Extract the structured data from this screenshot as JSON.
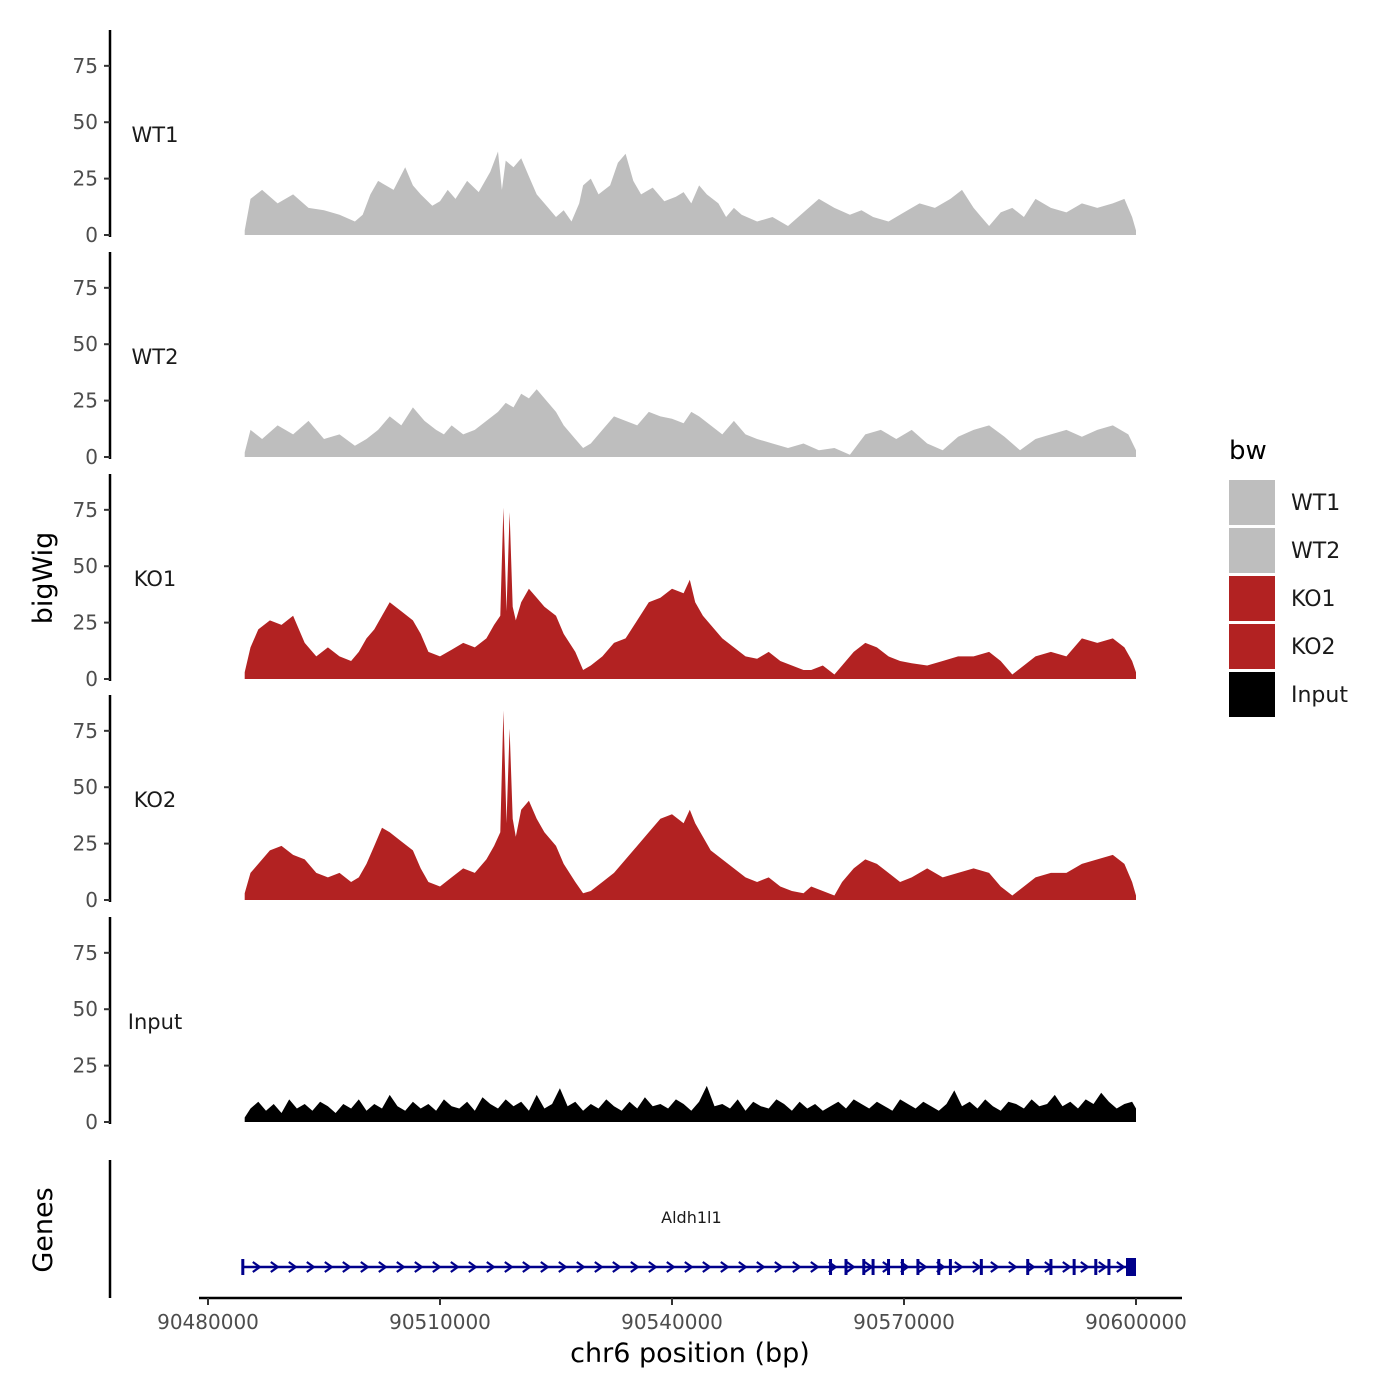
{
  "chart_data": {
    "type": "area",
    "chromosome": "chr6",
    "xlabel": "chr6 position (bp)",
    "ylabel": "bigWig",
    "genes_ylabel": "Genes",
    "xlim": [
      90480000,
      90600000
    ],
    "x_ticks": [
      90480000,
      90510000,
      90540000,
      90570000,
      90600000
    ],
    "x_tick_labels": [
      "90480000",
      "90510000",
      "90540000",
      "90570000",
      "90600000"
    ],
    "ylim": [
      0,
      90
    ],
    "y_ticks": [
      0,
      25,
      50,
      75
    ],
    "y_tick_labels": [
      "0",
      "25",
      "50",
      "75"
    ],
    "legend": {
      "title": "bw",
      "position": "right",
      "entries": [
        {
          "label": "WT1",
          "color": "#bebebe"
        },
        {
          "label": "WT2",
          "color": "#bebebe"
        },
        {
          "label": "KO1",
          "color": "#b22222"
        },
        {
          "label": "KO2",
          "color": "#b22222"
        },
        {
          "label": "Input",
          "color": "#000000"
        }
      ]
    },
    "series": [
      {
        "name": "WT1",
        "color": "#bebebe",
        "x": [
          90484750,
          90485500,
          90487000,
          90489000,
          90491000,
          90493000,
          90495000,
          90497000,
          90499000,
          90500000,
          90501000,
          90502000,
          90504000,
          90505500,
          90506500,
          90507500,
          90509000,
          90510000,
          90511000,
          90512000,
          90513500,
          90515000,
          90516500,
          90517500,
          90518000,
          90518500,
          90519500,
          90520500,
          90521500,
          90522500,
          90524000,
          90525000,
          90526000,
          90527000,
          90528000,
          90528500,
          90529500,
          90530500,
          90532000,
          90533000,
          90534000,
          90535000,
          90536000,
          90537500,
          90539000,
          90540500,
          90541500,
          90542500,
          90543500,
          90544500,
          90546000,
          90547000,
          90548000,
          90549000,
          90551000,
          90553000,
          90555000,
          90557000,
          90559000,
          90561000,
          90563000,
          90564500,
          90566000,
          90568000,
          90570000,
          90572000,
          90574000,
          90576000,
          90577500,
          90579000,
          90580000,
          90581000,
          90582500,
          90584000,
          90585500,
          90587000,
          90589000,
          90591000,
          90593000,
          90595000,
          90597000,
          90598500,
          90599500,
          90600000
        ],
        "y": [
          2,
          16,
          20,
          14,
          18,
          12,
          11,
          9,
          6,
          9,
          18,
          24,
          20,
          30,
          22,
          18,
          13,
          15,
          20,
          16,
          24,
          19,
          28,
          37,
          20,
          33,
          30,
          34,
          26,
          18,
          12,
          8,
          11,
          6,
          14,
          22,
          25,
          18,
          22,
          32,
          36,
          24,
          18,
          21,
          15,
          17,
          19,
          14,
          22,
          18,
          14,
          8,
          12,
          9,
          6,
          8,
          4,
          10,
          16,
          12,
          9,
          11,
          8,
          6,
          10,
          14,
          12,
          16,
          20,
          12,
          8,
          4,
          10,
          12,
          8,
          16,
          12,
          10,
          14,
          12,
          14,
          16,
          8,
          2
        ]
      },
      {
        "name": "WT2",
        "color": "#bebebe",
        "x": [
          90484750,
          90485500,
          90487000,
          90489000,
          90491000,
          90493000,
          90495000,
          90497000,
          90499000,
          90500500,
          90502000,
          90503500,
          90505000,
          90506500,
          90508000,
          90509500,
          90510500,
          90511500,
          90513000,
          90514500,
          90516000,
          90517500,
          90518500,
          90519500,
          90520500,
          90521500,
          90522500,
          90524000,
          90525000,
          90526000,
          90527500,
          90528500,
          90529500,
          90531000,
          90532500,
          90534000,
          90535500,
          90537000,
          90538500,
          90540000,
          90541500,
          90542500,
          90543500,
          90545000,
          90546500,
          90548000,
          90549500,
          90551000,
          90553000,
          90555000,
          90557000,
          90559000,
          90561000,
          90563000,
          90565000,
          90567000,
          90569000,
          90571000,
          90573000,
          90575000,
          90577000,
          90579000,
          90581000,
          90583000,
          90585000,
          90587000,
          90589000,
          90591000,
          90593000,
          90595000,
          90597000,
          90599000,
          90600000
        ],
        "y": [
          2,
          12,
          8,
          14,
          10,
          16,
          8,
          10,
          5,
          8,
          12,
          18,
          14,
          22,
          16,
          12,
          10,
          14,
          10,
          12,
          16,
          20,
          24,
          22,
          28,
          26,
          30,
          24,
          20,
          14,
          8,
          4,
          6,
          12,
          18,
          16,
          14,
          20,
          18,
          17,
          15,
          20,
          18,
          14,
          10,
          16,
          10,
          8,
          6,
          4,
          6,
          3,
          4,
          1,
          10,
          12,
          8,
          12,
          6,
          3,
          9,
          12,
          14,
          9,
          3,
          8,
          10,
          12,
          9,
          12,
          14,
          10,
          3
        ]
      },
      {
        "name": "KO1",
        "color": "#b22222",
        "x": [
          90484750,
          90485500,
          90486500,
          90488000,
          90489500,
          90491000,
          90492500,
          90494000,
          90495500,
          90497000,
          90498500,
          90499500,
          90500500,
          90501500,
          90502500,
          90503500,
          90505000,
          90506500,
          90507500,
          90508500,
          90510000,
          90511500,
          90513000,
          90514500,
          90516000,
          90517000,
          90517800,
          90518200,
          90518600,
          90519000,
          90519400,
          90519800,
          90520500,
          90521500,
          90522500,
          90523500,
          90525000,
          90526000,
          90527500,
          90528500,
          90529500,
          90531000,
          90532500,
          90534000,
          90535500,
          90537000,
          90538500,
          90540000,
          90541500,
          90542300,
          90543000,
          90544000,
          90545000,
          90546500,
          90548000,
          90549500,
          90551000,
          90552500,
          90554000,
          90555500,
          90557000,
          90558000,
          90559500,
          90561000,
          90562000,
          90563500,
          90565000,
          90566500,
          90568000,
          90569500,
          90571000,
          90573000,
          90575000,
          90577000,
          90579000,
          90581000,
          90582500,
          90584000,
          90585500,
          90587000,
          90589000,
          90591000,
          90593000,
          90595000,
          90597000,
          90598500,
          90599500,
          90600000
        ],
        "y": [
          3,
          14,
          22,
          26,
          24,
          28,
          16,
          10,
          14,
          10,
          8,
          12,
          18,
          22,
          28,
          34,
          30,
          26,
          20,
          12,
          10,
          13,
          16,
          14,
          18,
          24,
          28,
          76,
          30,
          74,
          32,
          26,
          34,
          40,
          36,
          32,
          28,
          20,
          12,
          4,
          6,
          10,
          16,
          18,
          26,
          34,
          36,
          40,
          38,
          44,
          34,
          28,
          24,
          18,
          14,
          10,
          9,
          12,
          8,
          6,
          4,
          4,
          6,
          2,
          6,
          12,
          16,
          14,
          10,
          8,
          7,
          6,
          8,
          10,
          10,
          12,
          8,
          2,
          6,
          10,
          12,
          10,
          18,
          16,
          18,
          14,
          8,
          3
        ]
      },
      {
        "name": "KO2",
        "color": "#b22222",
        "x": [
          90484750,
          90485500,
          90486500,
          90488000,
          90489500,
          90491000,
          90492500,
          90494000,
          90495500,
          90497000,
          90498500,
          90499500,
          90500500,
          90501500,
          90502500,
          90503500,
          90505000,
          90506500,
          90507500,
          90508500,
          90510000,
          90511500,
          90513000,
          90514500,
          90516000,
          90517000,
          90517800,
          90518200,
          90518600,
          90519000,
          90519400,
          90519800,
          90520500,
          90521500,
          90522500,
          90523500,
          90525000,
          90526000,
          90527500,
          90528500,
          90529500,
          90531000,
          90532500,
          90534000,
          90535500,
          90537000,
          90538500,
          90540000,
          90541500,
          90542300,
          90543000,
          90544000,
          90545000,
          90546500,
          90548000,
          90549500,
          90551000,
          90552500,
          90554000,
          90555500,
          90557000,
          90558000,
          90559500,
          90561000,
          90562000,
          90563500,
          90565000,
          90566500,
          90568000,
          90569500,
          90571000,
          90573000,
          90575000,
          90577000,
          90579000,
          90581000,
          90582500,
          90584000,
          90585500,
          90587000,
          90589000,
          90591000,
          90593000,
          90595000,
          90597000,
          90598500,
          90599500,
          90600000
        ],
        "y": [
          3,
          12,
          16,
          22,
          24,
          20,
          18,
          12,
          10,
          12,
          8,
          10,
          16,
          24,
          32,
          30,
          26,
          22,
          14,
          8,
          6,
          10,
          14,
          12,
          18,
          24,
          30,
          84,
          34,
          76,
          36,
          28,
          40,
          44,
          36,
          30,
          24,
          16,
          8,
          3,
          4,
          8,
          12,
          18,
          24,
          30,
          36,
          38,
          34,
          40,
          34,
          28,
          22,
          18,
          14,
          10,
          8,
          10,
          6,
          4,
          3,
          6,
          4,
          2,
          8,
          14,
          18,
          16,
          12,
          8,
          10,
          14,
          10,
          12,
          14,
          12,
          6,
          2,
          6,
          10,
          12,
          12,
          16,
          18,
          20,
          16,
          8,
          2
        ]
      },
      {
        "name": "Input",
        "color": "#000000",
        "x": [
          90484750,
          90485500,
          90486500,
          90487500,
          90488500,
          90489500,
          90490500,
          90491500,
          90492500,
          90493500,
          90494500,
          90495500,
          90496500,
          90497500,
          90498500,
          90499500,
          90500500,
          90501500,
          90502500,
          90503500,
          90504500,
          90505500,
          90506500,
          90507500,
          90508500,
          90509500,
          90510500,
          90511500,
          90512500,
          90513500,
          90514500,
          90515500,
          90516500,
          90517500,
          90518500,
          90519500,
          90520500,
          90521500,
          90522500,
          90523500,
          90524500,
          90525500,
          90526500,
          90527500,
          90528500,
          90529500,
          90530500,
          90531500,
          90532500,
          90533500,
          90534500,
          90535500,
          90536500,
          90537500,
          90538500,
          90539500,
          90540500,
          90541500,
          90542500,
          90543500,
          90544500,
          90545500,
          90546500,
          90547500,
          90548500,
          90549500,
          90550500,
          90551500,
          90552500,
          90553500,
          90554500,
          90555500,
          90556500,
          90557500,
          90558500,
          90559500,
          90560500,
          90561500,
          90562500,
          90563500,
          90564500,
          90565500,
          90566500,
          90567500,
          90568500,
          90569500,
          90570500,
          90571500,
          90572500,
          90573500,
          90574500,
          90575500,
          90576500,
          90577500,
          90578500,
          90579500,
          90580500,
          90581500,
          90582500,
          90583500,
          90584500,
          90585500,
          90586500,
          90587500,
          90588500,
          90589500,
          90590500,
          90591500,
          90592500,
          90593500,
          90594500,
          90595500,
          90596500,
          90597500,
          90598500,
          90599500,
          90600000
        ],
        "y": [
          2,
          6,
          9,
          5,
          8,
          4,
          10,
          6,
          8,
          5,
          9,
          7,
          4,
          8,
          6,
          10,
          5,
          8,
          6,
          12,
          7,
          5,
          9,
          6,
          8,
          5,
          10,
          7,
          6,
          9,
          5,
          11,
          8,
          6,
          10,
          7,
          9,
          5,
          12,
          6,
          8,
          15,
          7,
          9,
          5,
          8,
          6,
          10,
          7,
          5,
          9,
          6,
          11,
          7,
          8,
          6,
          10,
          8,
          5,
          9,
          16,
          7,
          8,
          6,
          10,
          5,
          9,
          7,
          6,
          10,
          8,
          5,
          9,
          6,
          8,
          5,
          7,
          9,
          6,
          10,
          8,
          6,
          9,
          7,
          5,
          10,
          8,
          6,
          9,
          7,
          5,
          8,
          14,
          7,
          9,
          6,
          10,
          7,
          5,
          9,
          8,
          6,
          10,
          7,
          8,
          12,
          7,
          9,
          6,
          10,
          8,
          13,
          9,
          6,
          8,
          9,
          6
        ]
      }
    ],
    "genes": [
      {
        "name": "Aldh1l1",
        "start": 90484500,
        "end": 90600000,
        "strand": "+",
        "color": "#00008b",
        "exons": [
          90560500,
          90562500,
          90564800,
          90566000,
          90568000,
          90569800,
          90571800,
          90574500,
          90576000,
          90580000,
          90586000,
          90589000,
          90592000,
          90594800,
          90596500
        ]
      }
    ]
  }
}
